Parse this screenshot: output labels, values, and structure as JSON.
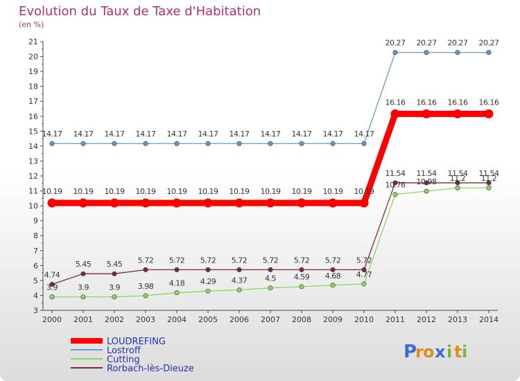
{
  "title": "Evolution du Taux de Taxe d'Habitation",
  "unit_label": "(en %)",
  "brand": {
    "text": "Proxiti",
    "letters": [
      "P",
      "r",
      "o",
      "x",
      "i",
      "t",
      "i"
    ],
    "colors": [
      "#3a6bd8",
      "#e58a1a",
      "#e58a1a",
      "#3a6bd8",
      "#72b83b",
      "#e58a1a",
      "#72b83b"
    ]
  },
  "chart_data": {
    "type": "line",
    "categories": [
      "2000",
      "2001",
      "2002",
      "2003",
      "2004",
      "2005",
      "2006",
      "2007",
      "2008",
      "2009",
      "2010",
      "2011",
      "2012",
      "2013",
      "2014"
    ],
    "ylim": [
      3,
      21
    ],
    "yticks": [
      3,
      4,
      5,
      6,
      7,
      8,
      9,
      10,
      11,
      12,
      13,
      14,
      15,
      16,
      17,
      18,
      19,
      20,
      21
    ],
    "grid": false,
    "legend_position": "bottom-left",
    "series": [
      {
        "name": "LOUDREFING",
        "color": "#ff0000",
        "values": [
          10.19,
          10.19,
          10.19,
          10.19,
          10.19,
          10.19,
          10.19,
          10.19,
          10.19,
          10.19,
          10.19,
          16.16,
          16.16,
          16.16,
          16.16
        ],
        "labels": [
          "10.19",
          "10.19",
          "10.19",
          "10.19",
          "10.19",
          "10.19",
          "10.19",
          "10.19",
          "10.19",
          "10.19",
          "10.19",
          "16.16",
          "16.16",
          "16.16",
          "16.16"
        ]
      },
      {
        "name": "Lostroff",
        "color": "#6699cc",
        "values": [
          14.17,
          14.17,
          14.17,
          14.17,
          14.17,
          14.17,
          14.17,
          14.17,
          14.17,
          14.17,
          14.17,
          20.27,
          20.27,
          20.27,
          20.27
        ],
        "labels": [
          "14.17",
          "14.17",
          "14.17",
          "14.17",
          "14.17",
          "14.17",
          "14.17",
          "14.17",
          "14.17",
          "14.17",
          "14.17",
          "20.27",
          "20.27",
          "20.27",
          "20.27"
        ]
      },
      {
        "name": "Cutting",
        "color": "#8fd659",
        "values": [
          3.9,
          3.9,
          3.9,
          3.98,
          4.18,
          4.29,
          4.37,
          4.5,
          4.59,
          4.68,
          4.77,
          10.76,
          10.98,
          11.2,
          11.2
        ],
        "labels": [
          "3.9",
          "3.9",
          "3.9",
          "3.98",
          "4.18",
          "4.29",
          "4.37",
          "4.5",
          "4.59",
          "4.68",
          "4.77",
          "10.76",
          "10.98",
          "11.2",
          "11.2"
        ]
      },
      {
        "name": "Rorbach-lès-Dieuze",
        "color": "#7a2b2b",
        "values": [
          4.74,
          5.45,
          5.45,
          5.72,
          5.72,
          5.72,
          5.72,
          5.72,
          5.72,
          5.72,
          5.72,
          11.54,
          11.54,
          11.54,
          11.54
        ],
        "labels": [
          "4.74",
          "5.45",
          "5.45",
          "5.72",
          "5.72",
          "5.72",
          "5.72",
          "5.72",
          "5.72",
          "5.72",
          "5.72",
          "11.54",
          "11.54",
          "11.54",
          "11.54"
        ]
      }
    ]
  }
}
